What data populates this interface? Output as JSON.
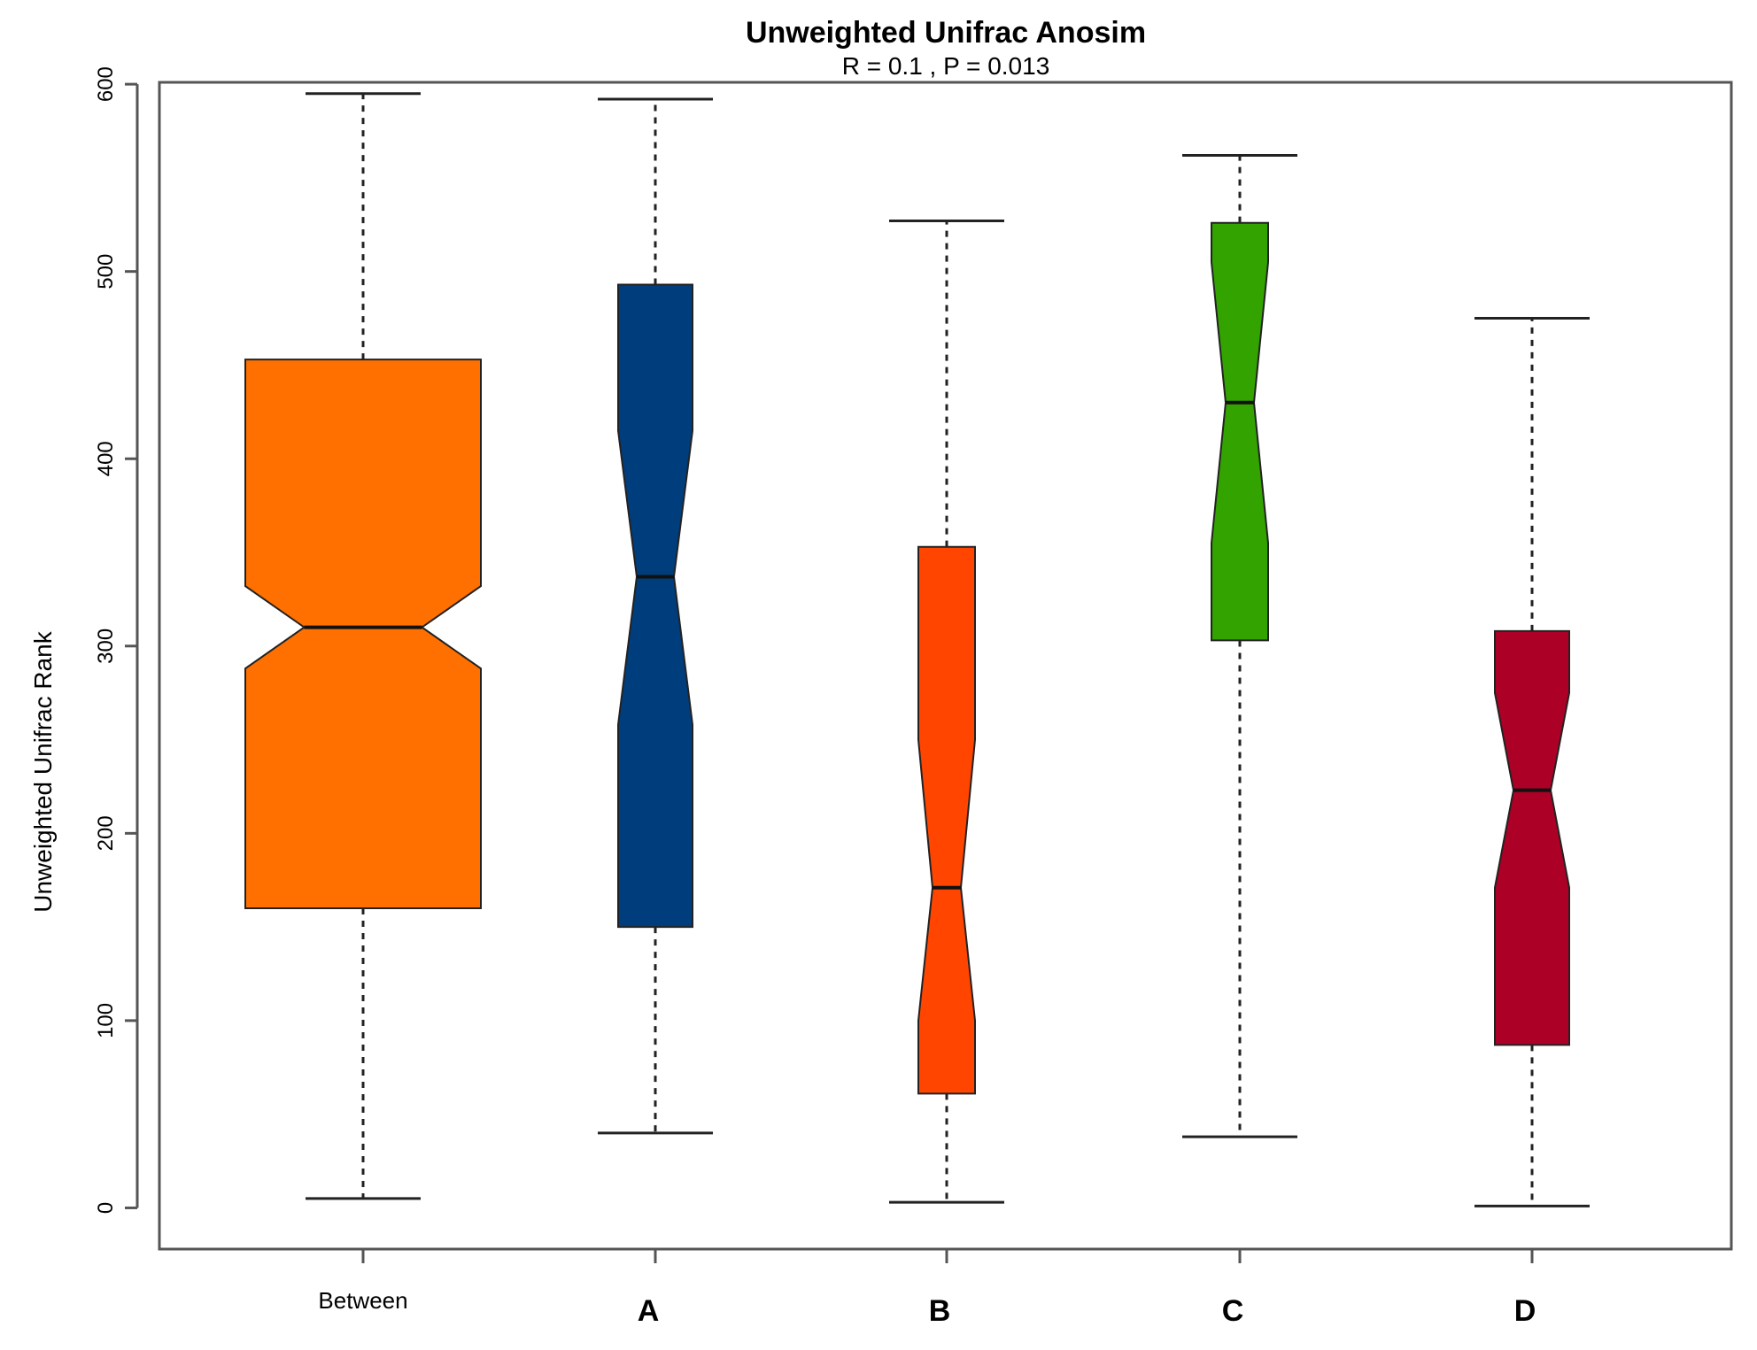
{
  "chart_data": {
    "type": "boxplot",
    "notched": true,
    "title": "Unweighted Unifrac Anosim",
    "subtitle": "R =  0.1 ,  P =  0.013",
    "ylabel": "Unweighted Unifrac Rank",
    "xlabel": "",
    "ylim": [
      -22,
      601
    ],
    "yticks": [
      "0",
      "100",
      "200",
      "300",
      "400",
      "500",
      "600"
    ],
    "ytick_values": [
      0,
      100,
      200,
      300,
      400,
      500,
      600
    ],
    "grid": false,
    "categories": [
      "Between",
      "A",
      "B",
      "C",
      "D"
    ],
    "boxes": [
      {
        "name": "Between",
        "whisker_low": 5,
        "q1": 160,
        "median": 310,
        "q3": 453,
        "whisker_high": 595,
        "notch_low": 288,
        "notch_high": 332,
        "color": "#ff7000"
      },
      {
        "name": "A",
        "whisker_low": 40,
        "q1": 150,
        "median": 337,
        "q3": 493,
        "whisker_high": 592,
        "notch_low": 258,
        "notch_high": 415,
        "color": "#003d7c"
      },
      {
        "name": "B",
        "whisker_low": 3,
        "q1": 61,
        "median": 171,
        "q3": 353,
        "whisker_high": 527,
        "notch_low": 100,
        "notch_high": 250,
        "color": "#ff4500"
      },
      {
        "name": "C",
        "whisker_low": 38,
        "q1": 303,
        "median": 430,
        "q3": 526,
        "whisker_high": 562,
        "notch_low": 355,
        "notch_high": 505,
        "color": "#33a300"
      },
      {
        "name": "D",
        "whisker_low": 1,
        "q1": 87,
        "median": 223,
        "q3": 308,
        "whisker_high": 475,
        "notch_low": 171,
        "notch_high": 275,
        "color": "#ad0026"
      }
    ]
  }
}
